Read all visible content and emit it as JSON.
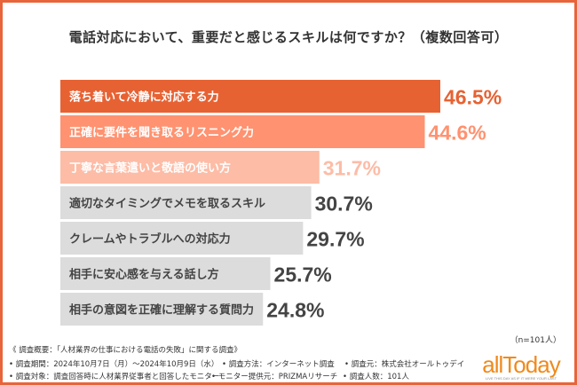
{
  "chart_data": {
    "type": "bar",
    "orientation": "horizontal",
    "title": "電話対応において、重要だと感じるスキルは何ですか？（複数回答可）",
    "categories": [
      "落ち着いて冷静に対応する力",
      "正確に要件を聞き取るリスニング力",
      "丁寧な言葉遣いと敬語の使い方",
      "適切なタイミングでメモを取るスキル",
      "クレームやトラブルへの対応力",
      "相手に安心感を与える話し方",
      "相手の意図を正確に理解する質問力"
    ],
    "values": [
      46.5,
      44.6,
      31.7,
      30.7,
      29.7,
      25.7,
      24.8
    ],
    "value_labels": [
      "46.5%",
      "44.6%",
      "31.7%",
      "30.7%",
      "29.7%",
      "25.7%",
      "24.8%"
    ],
    "bar_colors": [
      "#E76233",
      "#FF9270",
      "#FDBCA6",
      "#DCDCDC",
      "#DCDCDC",
      "#DCDCDC",
      "#DCDCDC"
    ],
    "label_colors": [
      "#E76233",
      "#FF9270",
      "#FDBCA6",
      "#444444",
      "#444444",
      "#444444",
      "#444444"
    ],
    "xlim": [
      0,
      50
    ],
    "grid": false
  },
  "sample": "（n=101人）",
  "notes": {
    "heading": "《 調査概要：「人材業界の仕事における電話の失敗」に関する調査》",
    "period": "• 調査期間：2024年10月7日（月）～2024年10月9日（水）",
    "method": "• 調査方法：インターネット調査",
    "source": "• 調査元：株式会社オールトゥデイ",
    "target": "• 調査対象：調査回答時に人材業界従事者と回答したモニター",
    "provider": "• モニター提供元：PRIZMAリサーチ",
    "count": "• 調査人数：101人"
  },
  "logo": {
    "text": "allToday",
    "tagline": "LIVE THIS DAY AS IF IT WERE YOUR LAST",
    "color": "#F08A1C"
  },
  "frame_color": "#E8643A"
}
